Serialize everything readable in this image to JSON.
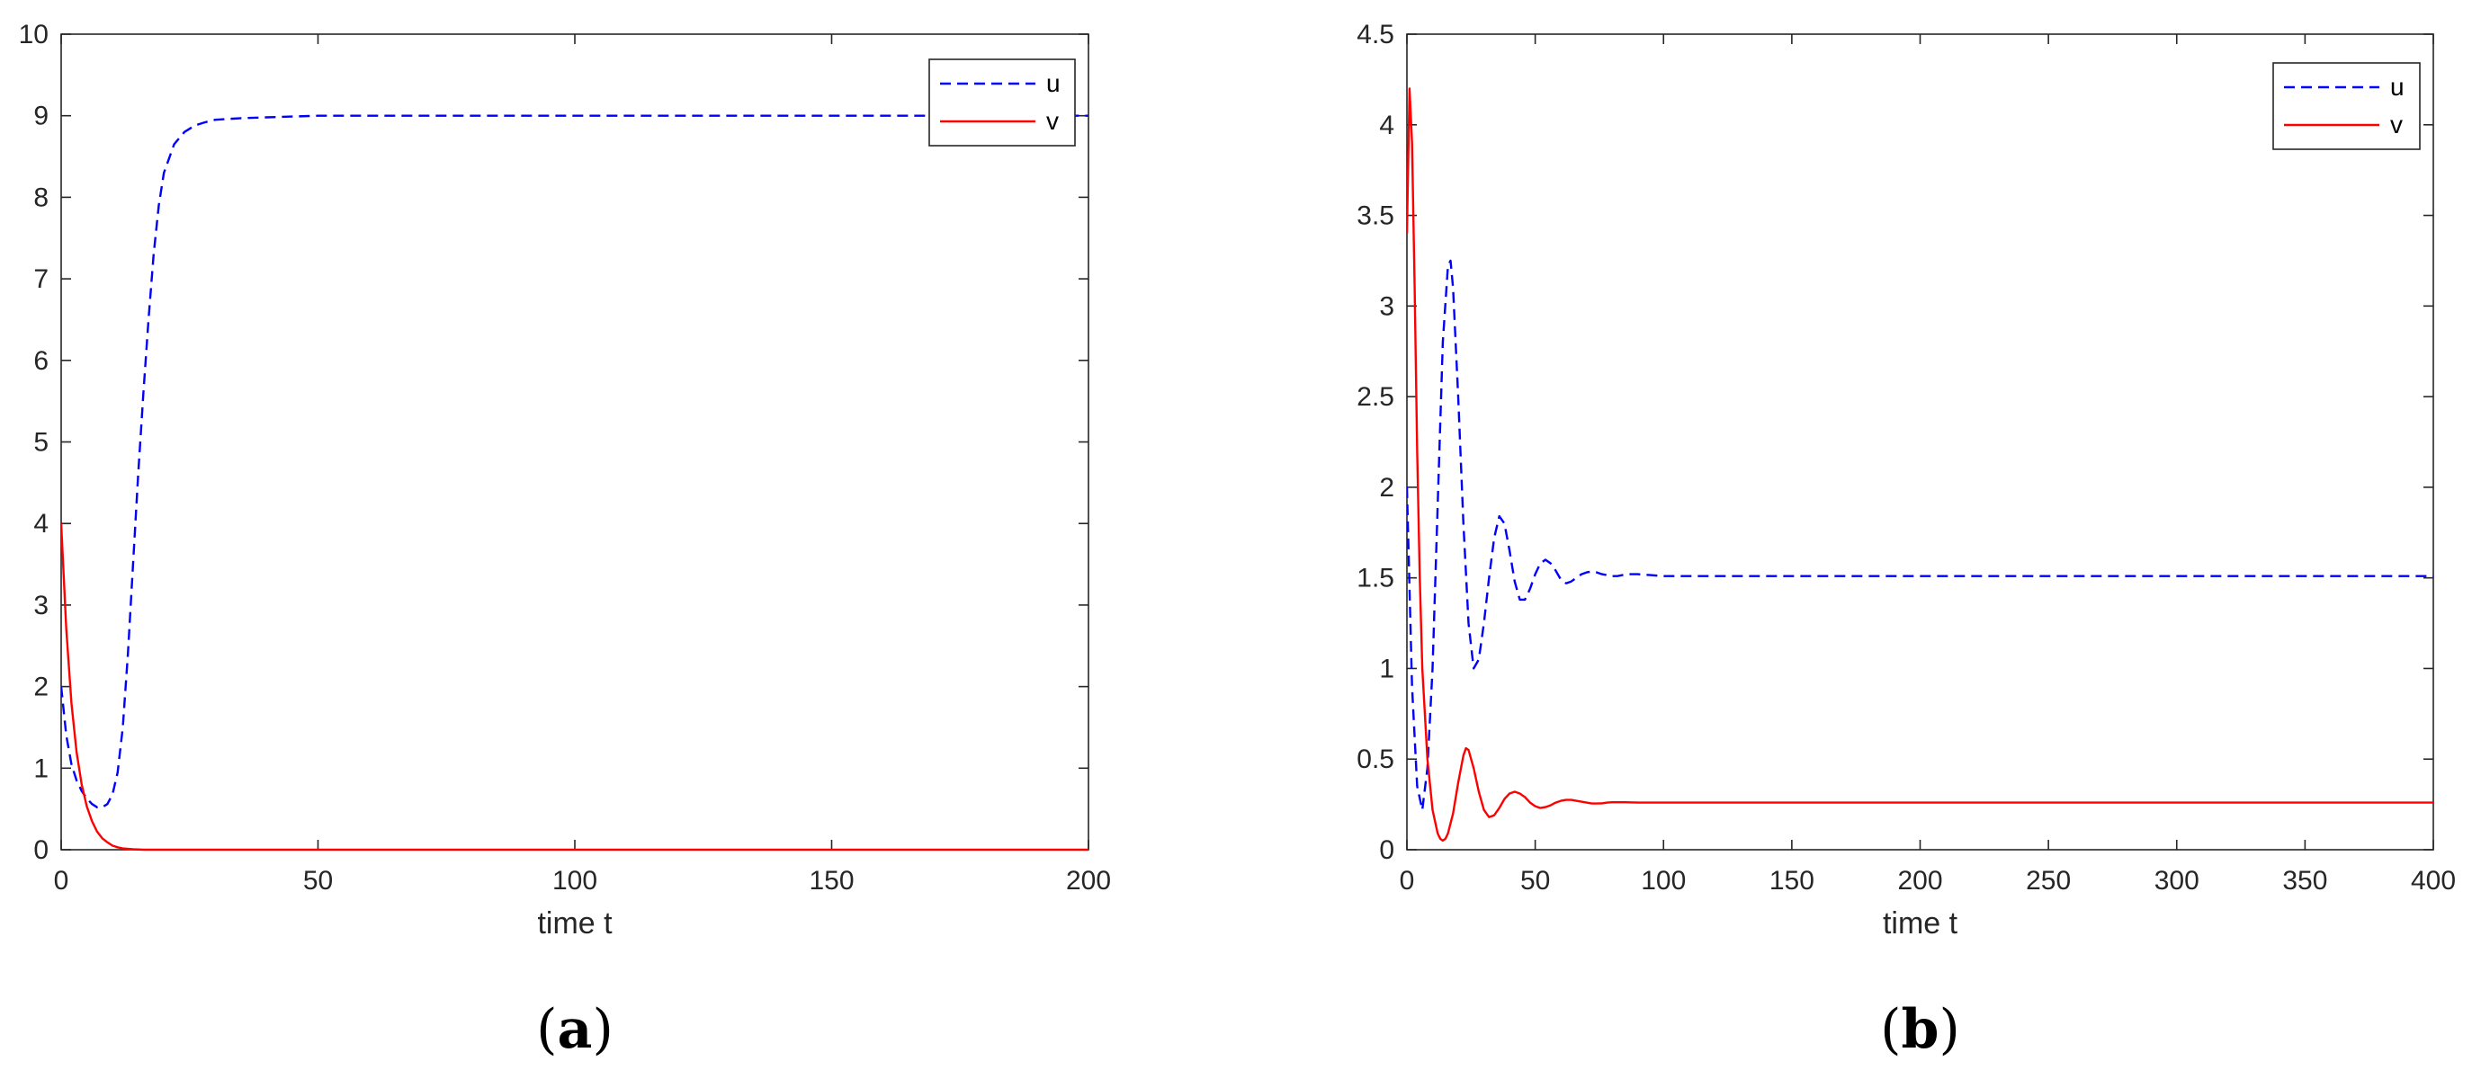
{
  "chart_data": [
    {
      "type": "line",
      "panel_label": "a",
      "xlabel": "time t",
      "ylabel": "",
      "xlim": [
        0,
        200
      ],
      "ylim": [
        0,
        10
      ],
      "xticks": [
        "0",
        "50",
        "100",
        "150",
        "200"
      ],
      "yticks": [
        "0",
        "1",
        "2",
        "3",
        "4",
        "5",
        "6",
        "7",
        "8",
        "9",
        "10"
      ],
      "legend_position": "top-right",
      "series": [
        {
          "name": "u",
          "color": "#0000ff",
          "style": "dashed",
          "x": [
            0,
            1,
            2,
            3,
            4,
            5,
            6,
            7,
            8,
            9,
            10,
            11,
            12,
            13,
            14,
            15,
            16,
            17,
            18,
            19,
            20,
            22,
            24,
            26,
            28,
            30,
            35,
            40,
            45,
            50,
            60,
            80,
            100,
            150,
            200
          ],
          "y": [
            2.0,
            1.4,
            1.05,
            0.85,
            0.72,
            0.63,
            0.56,
            0.52,
            0.52,
            0.56,
            0.68,
            0.95,
            1.5,
            2.4,
            3.5,
            4.6,
            5.6,
            6.5,
            7.3,
            7.9,
            8.3,
            8.65,
            8.8,
            8.88,
            8.92,
            8.95,
            8.97,
            8.98,
            8.99,
            9.0,
            9.0,
            9.0,
            9.0,
            9.0,
            9.0
          ]
        },
        {
          "name": "v",
          "color": "#ff0000",
          "style": "solid",
          "x": [
            0,
            1,
            2,
            3,
            4,
            5,
            6,
            7,
            8,
            9,
            10,
            11,
            12,
            14,
            16,
            20,
            30,
            50,
            100,
            150,
            200
          ],
          "y": [
            4.0,
            2.7,
            1.8,
            1.2,
            0.8,
            0.53,
            0.35,
            0.22,
            0.14,
            0.09,
            0.05,
            0.03,
            0.015,
            0.005,
            0.0,
            0.0,
            0.0,
            0.0,
            0.0,
            0.0,
            0.0
          ]
        }
      ]
    },
    {
      "type": "line",
      "panel_label": "b",
      "xlabel": "time t",
      "ylabel": "",
      "xlim": [
        0,
        400
      ],
      "ylim": [
        0,
        4.5
      ],
      "xticks": [
        "0",
        "50",
        "100",
        "150",
        "200",
        "250",
        "300",
        "350",
        "400"
      ],
      "yticks": [
        "0",
        "0.5",
        "1",
        "1.5",
        "2",
        "2.5",
        "3",
        "3.5",
        "4",
        "4.5"
      ],
      "legend_position": "top-right",
      "series": [
        {
          "name": "u",
          "color": "#0000ff",
          "style": "dashed",
          "x": [
            0,
            2,
            4,
            6,
            8,
            10,
            12,
            14,
            16,
            17,
            18,
            20,
            22,
            24,
            26,
            28,
            30,
            32,
            34,
            36,
            38,
            40,
            42,
            44,
            46,
            48,
            50,
            52,
            54,
            56,
            58,
            60,
            62,
            64,
            66,
            68,
            70,
            72,
            74,
            76,
            78,
            80,
            82,
            84,
            86,
            88,
            90,
            95,
            100,
            110,
            120,
            150,
            200,
            250,
            300,
            350,
            400
          ],
          "y": [
            2.0,
            0.9,
            0.35,
            0.22,
            0.45,
            1.0,
            1.9,
            2.8,
            3.22,
            3.25,
            3.1,
            2.5,
            1.8,
            1.25,
            1.0,
            1.05,
            1.25,
            1.5,
            1.72,
            1.84,
            1.8,
            1.65,
            1.48,
            1.38,
            1.38,
            1.44,
            1.52,
            1.58,
            1.6,
            1.58,
            1.54,
            1.49,
            1.47,
            1.48,
            1.5,
            1.52,
            1.53,
            1.535,
            1.53,
            1.52,
            1.515,
            1.51,
            1.51,
            1.515,
            1.52,
            1.52,
            1.52,
            1.515,
            1.51,
            1.51,
            1.51,
            1.51,
            1.51,
            1.51,
            1.51,
            1.51,
            1.51
          ]
        },
        {
          "name": "v",
          "color": "#ff0000",
          "style": "solid",
          "x": [
            0,
            1,
            2,
            3,
            4,
            5,
            6,
            8,
            10,
            12,
            13,
            14,
            15,
            16,
            18,
            20,
            22,
            23,
            24,
            26,
            28,
            30,
            32,
            34,
            36,
            38,
            40,
            42,
            44,
            46,
            48,
            50,
            52,
            54,
            56,
            58,
            60,
            62,
            64,
            66,
            68,
            70,
            72,
            74,
            76,
            78,
            80,
            85,
            90,
            100,
            120,
            150,
            200,
            250,
            300,
            350,
            400
          ],
          "y": [
            3.4,
            4.2,
            3.9,
            3.1,
            2.2,
            1.5,
            1.0,
            0.5,
            0.22,
            0.09,
            0.06,
            0.05,
            0.06,
            0.09,
            0.2,
            0.37,
            0.52,
            0.56,
            0.55,
            0.45,
            0.32,
            0.22,
            0.18,
            0.19,
            0.23,
            0.28,
            0.31,
            0.32,
            0.31,
            0.29,
            0.26,
            0.24,
            0.23,
            0.235,
            0.245,
            0.26,
            0.27,
            0.275,
            0.275,
            0.27,
            0.265,
            0.26,
            0.255,
            0.255,
            0.256,
            0.26,
            0.262,
            0.262,
            0.26,
            0.26,
            0.26,
            0.26,
            0.26,
            0.26,
            0.26,
            0.26,
            0.26
          ]
        }
      ]
    }
  ]
}
